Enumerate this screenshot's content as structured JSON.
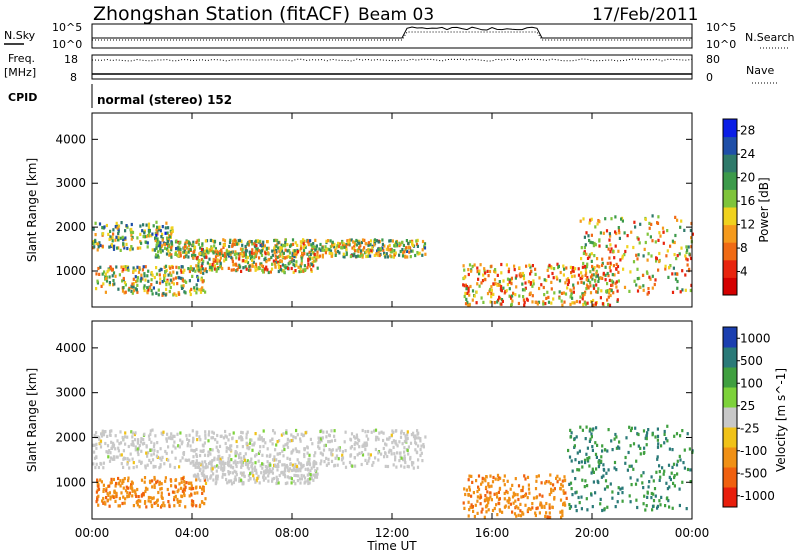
{
  "header": {
    "station": "Zhongshan Station (fitACF)",
    "beam": "Beam 03",
    "date": "17/Feb/2011"
  },
  "panels": {
    "nsky_label": "N.Sky",
    "nsky_top": "10^5",
    "nsky_bottom": "10^0",
    "nsearch_label": "N.Search",
    "nsearch_top": "10^5",
    "nsearch_bottom": "10^0",
    "freq_label": "Freq.",
    "freq_unit": "[MHz]",
    "freq_top": "18",
    "freq_bottom": "8",
    "nave_label": "Nave",
    "nave_top": "80",
    "nave_bottom": "0",
    "cpid_label": "CPID",
    "cpid_value": "normal (stereo) 152"
  },
  "chart_data": [
    {
      "type": "heatmap",
      "name": "power",
      "ylabel": "Slant Range [km]",
      "xlabel": "Time UT",
      "y_ticks": [
        "1000",
        "2000",
        "3000",
        "4000"
      ],
      "ylim": [
        180,
        4600
      ],
      "x_ticks": [
        "00:00",
        "04:00",
        "08:00",
        "12:00",
        "16:00",
        "20:00",
        "00:00"
      ],
      "colorbar": {
        "label": "Power [dB]",
        "ticks": [
          "4",
          "8",
          "12",
          "16",
          "20",
          "24",
          "28"
        ],
        "range": [
          0,
          30
        ],
        "colors": [
          "#0a1ee6",
          "#1f4fa8",
          "#2f7a6a",
          "#3c9a4a",
          "#7fc43b",
          "#f0d21e",
          "#f59a1c",
          "#f06a14",
          "#e8240e",
          "#d40000"
        ]
      },
      "regions": [
        {
          "t": [
            0.0,
            3.2
          ],
          "r": [
            1500,
            2150
          ],
          "level": 0.45
        },
        {
          "t": [
            2.5,
            13.3
          ],
          "r": [
            1350,
            1750
          ],
          "level": 0.55
        },
        {
          "t": [
            0.1,
            4.5
          ],
          "r": [
            480,
            1150
          ],
          "level": 0.55
        },
        {
          "t": [
            4.0,
            9.0
          ],
          "r": [
            1000,
            1500
          ],
          "level": 0.6
        },
        {
          "t": [
            14.8,
            21.0
          ],
          "r": [
            250,
            1200
          ],
          "level": 0.7
        },
        {
          "t": [
            19.5,
            24.0
          ],
          "r": [
            500,
            2300
          ],
          "level": 0.65
        }
      ]
    },
    {
      "type": "heatmap",
      "name": "velocity",
      "ylabel": "Slant Range [km]",
      "xlabel": "Time UT",
      "y_ticks": [
        "1000",
        "2000",
        "3000",
        "4000"
      ],
      "ylim": [
        180,
        4600
      ],
      "x_ticks": [
        "00:00",
        "04:00",
        "08:00",
        "12:00",
        "16:00",
        "20:00",
        "00:00"
      ],
      "colorbar": {
        "label": "Velocity [m s^-1]",
        "ticks": [
          "1000",
          "500",
          "100",
          "25",
          "-25",
          "-100",
          "-500",
          "-1000"
        ],
        "colors": [
          "#1b3fb0",
          "#2a7a78",
          "#3f9f3f",
          "#7dd23a",
          "#c8c8c8",
          "#f0c218",
          "#f09015",
          "#f0600f",
          "#e81e0c"
        ]
      },
      "regions": [
        {
          "t": [
            0.0,
            13.3
          ],
          "r": [
            1350,
            2200
          ],
          "value": 0
        },
        {
          "t": [
            0.1,
            4.5
          ],
          "r": [
            480,
            1150
          ],
          "value": -300
        },
        {
          "t": [
            4.0,
            9.0
          ],
          "r": [
            1000,
            1500
          ],
          "value": 0
        },
        {
          "t": [
            14.8,
            19.0
          ],
          "r": [
            250,
            1200
          ],
          "value": -300
        },
        {
          "t": [
            19.0,
            24.0
          ],
          "r": [
            400,
            2300
          ],
          "value": 300
        }
      ]
    }
  ]
}
